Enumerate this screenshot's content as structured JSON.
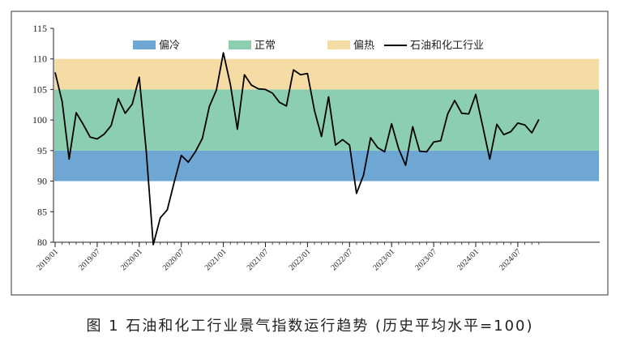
{
  "caption": "图 1  石油和化工行业景气指数运行趋势 (历史平均水平=100)",
  "chart_data": {
    "type": "line",
    "xlabel": "",
    "ylabel": "",
    "ylim": [
      80,
      115
    ],
    "y_ticks": [
      80,
      85,
      90,
      95,
      100,
      105,
      110,
      115
    ],
    "x_tick_labels": [
      "2019/01",
      "2019/07",
      "2020/01",
      "2020/07",
      "2021/01",
      "2021/07",
      "2022/01",
      "2022/07",
      "2023/01",
      "2023/07",
      "2024/01",
      "2024/07"
    ],
    "x_tick_indices": [
      0,
      6,
      12,
      18,
      24,
      30,
      36,
      42,
      48,
      54,
      60,
      66
    ],
    "grid": false,
    "legend_position": "top",
    "bands": [
      {
        "name": "偏冷",
        "from": 90,
        "to": 95,
        "color": "#6fa7d4"
      },
      {
        "name": "正常",
        "from": 95,
        "to": 105,
        "color": "#8ccfb0"
      },
      {
        "name": "偏热",
        "from": 105,
        "to": 110,
        "color": "#f5dca4"
      }
    ],
    "series": [
      {
        "name": "石油和化工行业",
        "color": "#000000",
        "values": [
          107.8,
          103.0,
          93.6,
          101.2,
          99.3,
          97.2,
          96.9,
          97.7,
          99.1,
          103.5,
          101.1,
          102.6,
          107.0,
          95.0,
          79.6,
          84.0,
          85.3,
          89.9,
          94.2,
          93.1,
          94.8,
          97.0,
          102.2,
          104.9,
          111.0,
          105.8,
          98.5,
          107.4,
          105.7,
          105.1,
          105.0,
          104.4,
          102.9,
          102.3,
          108.2,
          107.4,
          107.6,
          101.5,
          97.3,
          103.8,
          95.9,
          96.8,
          95.9,
          88.0,
          91.0,
          97.1,
          95.5,
          94.8,
          99.4,
          95.3,
          92.6,
          98.9,
          94.9,
          94.8,
          96.4,
          96.6,
          101.0,
          103.2,
          101.1,
          101.0,
          104.2,
          99.0,
          93.6,
          99.3,
          97.6,
          98.1,
          99.5,
          99.2,
          97.9,
          100.1
        ]
      }
    ]
  }
}
